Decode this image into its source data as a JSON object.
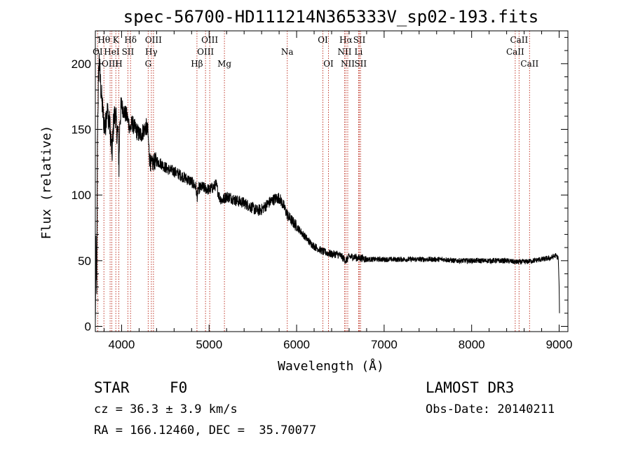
{
  "chart_data": {
    "type": "line",
    "title": "spec-56700-HD111214N365333V_sp02-193.fits",
    "xlabel": "Wavelength (Å)",
    "ylabel": "Flux (relative)",
    "xlim": [
      3700,
      9100
    ],
    "ylim": [
      -4,
      225
    ],
    "xticks": [
      4000,
      5000,
      6000,
      7000,
      8000,
      9000
    ],
    "xtick_labels": [
      "4000",
      "5000",
      "6000",
      "7000",
      "8000",
      "9000"
    ],
    "yticks": [
      0,
      50,
      100,
      150,
      200
    ],
    "ytick_labels": [
      "0",
      "50",
      "100",
      "150",
      "200"
    ],
    "series": [
      {
        "name": "flux",
        "anchors": [
          [
            3700,
            0
          ],
          [
            3708,
            65
          ],
          [
            3716,
            20
          ],
          [
            3725,
            150
          ],
          [
            3735,
            185
          ],
          [
            3745,
            205
          ],
          [
            3755,
            190
          ],
          [
            3770,
            175
          ],
          [
            3790,
            160
          ],
          [
            3810,
            150
          ],
          [
            3830,
            165
          ],
          [
            3850,
            160
          ],
          [
            3870,
            150
          ],
          [
            3890,
            130
          ],
          [
            3910,
            158
          ],
          [
            3930,
            162
          ],
          [
            3945,
            150
          ],
          [
            3960,
            148
          ],
          [
            3970,
            120
          ],
          [
            3980,
            158
          ],
          [
            4000,
            168
          ],
          [
            4020,
            165
          ],
          [
            4040,
            162
          ],
          [
            4060,
            160
          ],
          [
            4080,
            155
          ],
          [
            4100,
            150
          ],
          [
            4120,
            155
          ],
          [
            4140,
            152
          ],
          [
            4160,
            150
          ],
          [
            4180,
            148
          ],
          [
            4200,
            146
          ],
          [
            4220,
            146
          ],
          [
            4240,
            148
          ],
          [
            4260,
            150
          ],
          [
            4280,
            152
          ],
          [
            4300,
            148
          ],
          [
            4320,
            128
          ],
          [
            4340,
            122
          ],
          [
            4360,
            125
          ],
          [
            4400,
            126
          ],
          [
            4450,
            124
          ],
          [
            4500,
            121
          ],
          [
            4550,
            119
          ],
          [
            4600,
            118
          ],
          [
            4650,
            116
          ],
          [
            4700,
            114
          ],
          [
            4750,
            112
          ],
          [
            4800,
            110
          ],
          [
            4850,
            106
          ],
          [
            4861,
            98
          ],
          [
            4880,
            105
          ],
          [
            4920,
            106
          ],
          [
            4960,
            105
          ],
          [
            5000,
            104
          ],
          [
            5050,
            106
          ],
          [
            5080,
            108
          ],
          [
            5120,
            98
          ],
          [
            5150,
            96
          ],
          [
            5200,
            99
          ],
          [
            5250,
            98
          ],
          [
            5300,
            96
          ],
          [
            5350,
            95
          ],
          [
            5400,
            94
          ],
          [
            5450,
            92
          ],
          [
            5500,
            90
          ],
          [
            5550,
            88
          ],
          [
            5600,
            89
          ],
          [
            5650,
            92
          ],
          [
            5700,
            95
          ],
          [
            5750,
            97
          ],
          [
            5800,
            98
          ],
          [
            5850,
            92
          ],
          [
            5900,
            84
          ],
          [
            5950,
            80
          ],
          [
            6000,
            76
          ],
          [
            6050,
            72
          ],
          [
            6100,
            68
          ],
          [
            6150,
            64
          ],
          [
            6200,
            61
          ],
          [
            6250,
            59
          ],
          [
            6300,
            57
          ],
          [
            6350,
            56
          ],
          [
            6400,
            55
          ],
          [
            6450,
            55
          ],
          [
            6500,
            54
          ],
          [
            6563,
            50
          ],
          [
            6600,
            53
          ],
          [
            6650,
            53
          ],
          [
            6700,
            52
          ],
          [
            6750,
            52
          ],
          [
            6800,
            51
          ],
          [
            6900,
            51
          ],
          [
            7000,
            51
          ],
          [
            7100,
            51
          ],
          [
            7200,
            51
          ],
          [
            7300,
            51
          ],
          [
            7400,
            51
          ],
          [
            7500,
            51
          ],
          [
            7600,
            51
          ],
          [
            7700,
            51
          ],
          [
            7800,
            50
          ],
          [
            7900,
            50
          ],
          [
            8000,
            50
          ],
          [
            8100,
            50
          ],
          [
            8200,
            50
          ],
          [
            8300,
            50
          ],
          [
            8400,
            50
          ],
          [
            8500,
            49
          ],
          [
            8600,
            49
          ],
          [
            8700,
            50
          ],
          [
            8800,
            51
          ],
          [
            8900,
            52
          ],
          [
            8960,
            54
          ],
          [
            8990,
            52
          ],
          [
            9000,
            30
          ],
          [
            9005,
            5
          ]
        ]
      }
    ],
    "annotations": [
      {
        "label": "Hθ",
        "x": 3798,
        "tier": 1
      },
      {
        "label": "K",
        "x": 3934,
        "tier": 1
      },
      {
        "label": "Hδ",
        "x": 4102,
        "tier": 1
      },
      {
        "label": "OIII",
        "x": 4364,
        "tier": 1
      },
      {
        "label": "OIII",
        "x": 5007,
        "tier": 1
      },
      {
        "label": "OI",
        "x": 6300,
        "tier": 1
      },
      {
        "label": "Hα",
        "x": 6563,
        "tier": 1
      },
      {
        "label": "SII",
        "x": 6717,
        "tier": 1
      },
      {
        "label": "CaII",
        "x": 8542,
        "tier": 1
      },
      {
        "label": "OI",
        "x": 3727,
        "tier": 2
      },
      {
        "label": "HeI",
        "x": 3888,
        "tier": 2
      },
      {
        "label": "SII",
        "x": 4072,
        "tier": 2
      },
      {
        "label": "Hγ",
        "x": 4340,
        "tier": 2
      },
      {
        "label": "OIII",
        "x": 4959,
        "tier": 2
      },
      {
        "label": "Na",
        "x": 5893,
        "tier": 2
      },
      {
        "label": "NII",
        "x": 6548,
        "tier": 2
      },
      {
        "label": "Li",
        "x": 6708,
        "tier": 2
      },
      {
        "label": "CaII",
        "x": 8498,
        "tier": 2
      },
      {
        "label": "OIII",
        "x": 3869,
        "tier": 3
      },
      {
        "label": "H",
        "x": 3968,
        "tier": 3
      },
      {
        "label": "G",
        "x": 4304,
        "tier": 3
      },
      {
        "label": "Hβ",
        "x": 4861,
        "tier": 3
      },
      {
        "label": "Mg",
        "x": 5175,
        "tier": 3
      },
      {
        "label": "OI",
        "x": 6364,
        "tier": 3
      },
      {
        "label": "NII",
        "x": 6584,
        "tier": 3
      },
      {
        "label": "SII",
        "x": 6731,
        "tier": 3
      },
      {
        "label": "CaII",
        "x": 8662,
        "tier": 3
      }
    ]
  },
  "info": {
    "object_class": "STAR",
    "subclass": "F0",
    "survey": "LAMOST DR3",
    "cz": "cz = 36.3 ± 3.9 km/s",
    "obs_date": "Obs-Date: 20140211",
    "coords": "RA = 166.12460, DEC =  35.70077"
  }
}
